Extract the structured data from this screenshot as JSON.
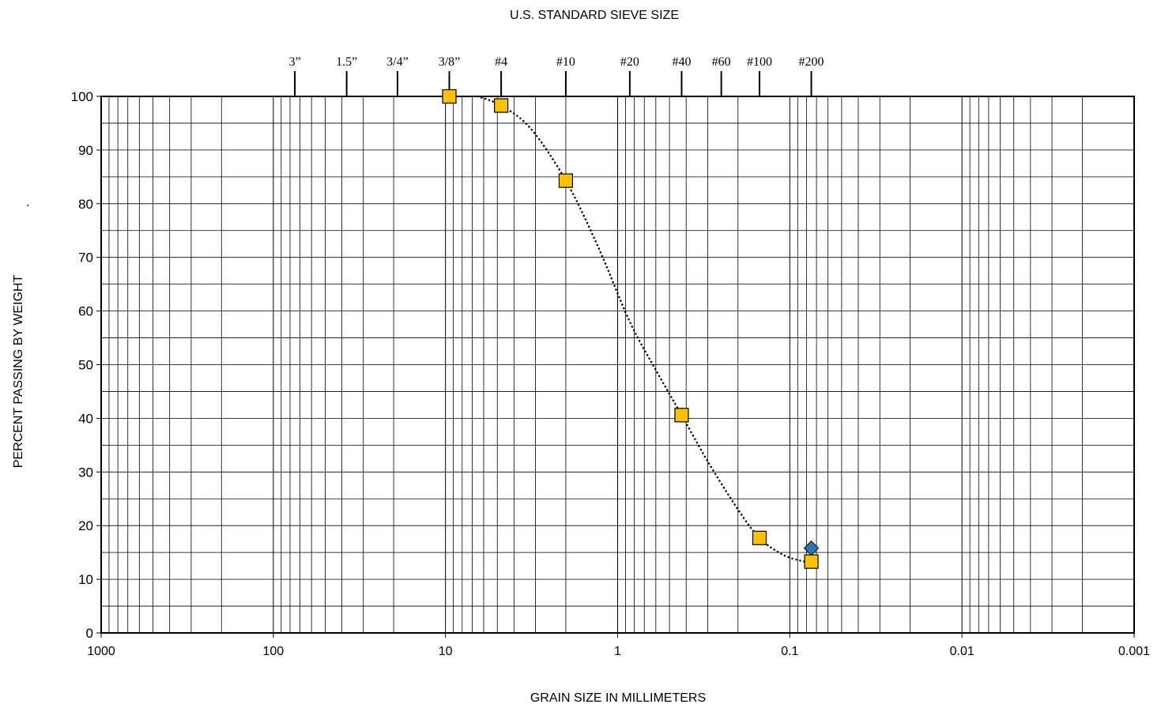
{
  "chart_data": {
    "type": "scatter",
    "title": "U.S. STANDARD SIEVE SIZE",
    "xlabel": "GRAIN SIZE IN MILLIMETERS",
    "ylabel": "PERCENT PASSING BY WEIGHT",
    "ylabel_suffix": ".",
    "x_scale": "log",
    "x_reversed": true,
    "xlim": [
      1000,
      0.001
    ],
    "ylim": [
      0,
      100
    ],
    "grid": true,
    "x_tick_labels": [
      {
        "value": 1000,
        "label": "1000"
      },
      {
        "value": 100,
        "label": "100"
      },
      {
        "value": 10,
        "label": "10"
      },
      {
        "value": 1,
        "label": "1"
      },
      {
        "value": 0.1,
        "label": "0.1"
      },
      {
        "value": 0.01,
        "label": "0.01"
      },
      {
        "value": 0.001,
        "label": "0.001"
      }
    ],
    "y_tick_labels": [
      {
        "value": 0,
        "label": "0"
      },
      {
        "value": 10,
        "label": "10"
      },
      {
        "value": 20,
        "label": "20"
      },
      {
        "value": 30,
        "label": "30"
      },
      {
        "value": 40,
        "label": "40"
      },
      {
        "value": 50,
        "label": "50"
      },
      {
        "value": 60,
        "label": "60"
      },
      {
        "value": 70,
        "label": "70"
      },
      {
        "value": 80,
        "label": "80"
      },
      {
        "value": 90,
        "label": "90"
      },
      {
        "value": 100,
        "label": "100"
      }
    ],
    "sieves": [
      {
        "label": "3”",
        "size": 75
      },
      {
        "label": "1.5”",
        "size": 37.5
      },
      {
        "label": "3/4”",
        "size": 19
      },
      {
        "label": "3/8”",
        "size": 9.5
      },
      {
        "label": "#4",
        "size": 4.75
      },
      {
        "label": "#10",
        "size": 2
      },
      {
        "label": "#20",
        "size": 0.85
      },
      {
        "label": "#40",
        "size": 0.425
      },
      {
        "label": "#60",
        "size": 0.25
      },
      {
        "label": "#100",
        "size": 0.15
      },
      {
        "label": "#200",
        "size": 0.075
      }
    ],
    "series": [
      {
        "marker": "square",
        "color": "#FFC000",
        "points": [
          {
            "x": 9.5,
            "y": 100
          },
          {
            "x": 4.75,
            "y": 98.3
          },
          {
            "x": 2,
            "y": 84.3
          },
          {
            "x": 0.425,
            "y": 40.6
          },
          {
            "x": 0.15,
            "y": 17.7
          },
          {
            "x": 0.075,
            "y": 13.3
          }
        ]
      },
      {
        "marker": "diamond",
        "color": "#2E75B6",
        "points": [
          {
            "x": 0.075,
            "y": 15.8
          }
        ]
      }
    ],
    "curve": {
      "style": "dotted",
      "color": "#000000",
      "points": [
        {
          "x": 6.5,
          "y": 100
        },
        {
          "x": 4.75,
          "y": 98.3
        },
        {
          "x": 3.2,
          "y": 94
        },
        {
          "x": 2,
          "y": 84.3
        },
        {
          "x": 1.3,
          "y": 72
        },
        {
          "x": 0.85,
          "y": 58
        },
        {
          "x": 0.6,
          "y": 49
        },
        {
          "x": 0.425,
          "y": 40.6
        },
        {
          "x": 0.3,
          "y": 32
        },
        {
          "x": 0.2,
          "y": 23
        },
        {
          "x": 0.15,
          "y": 17.7
        },
        {
          "x": 0.11,
          "y": 14.6
        },
        {
          "x": 0.085,
          "y": 13.4
        },
        {
          "x": 0.075,
          "y": 13.3
        }
      ]
    }
  }
}
